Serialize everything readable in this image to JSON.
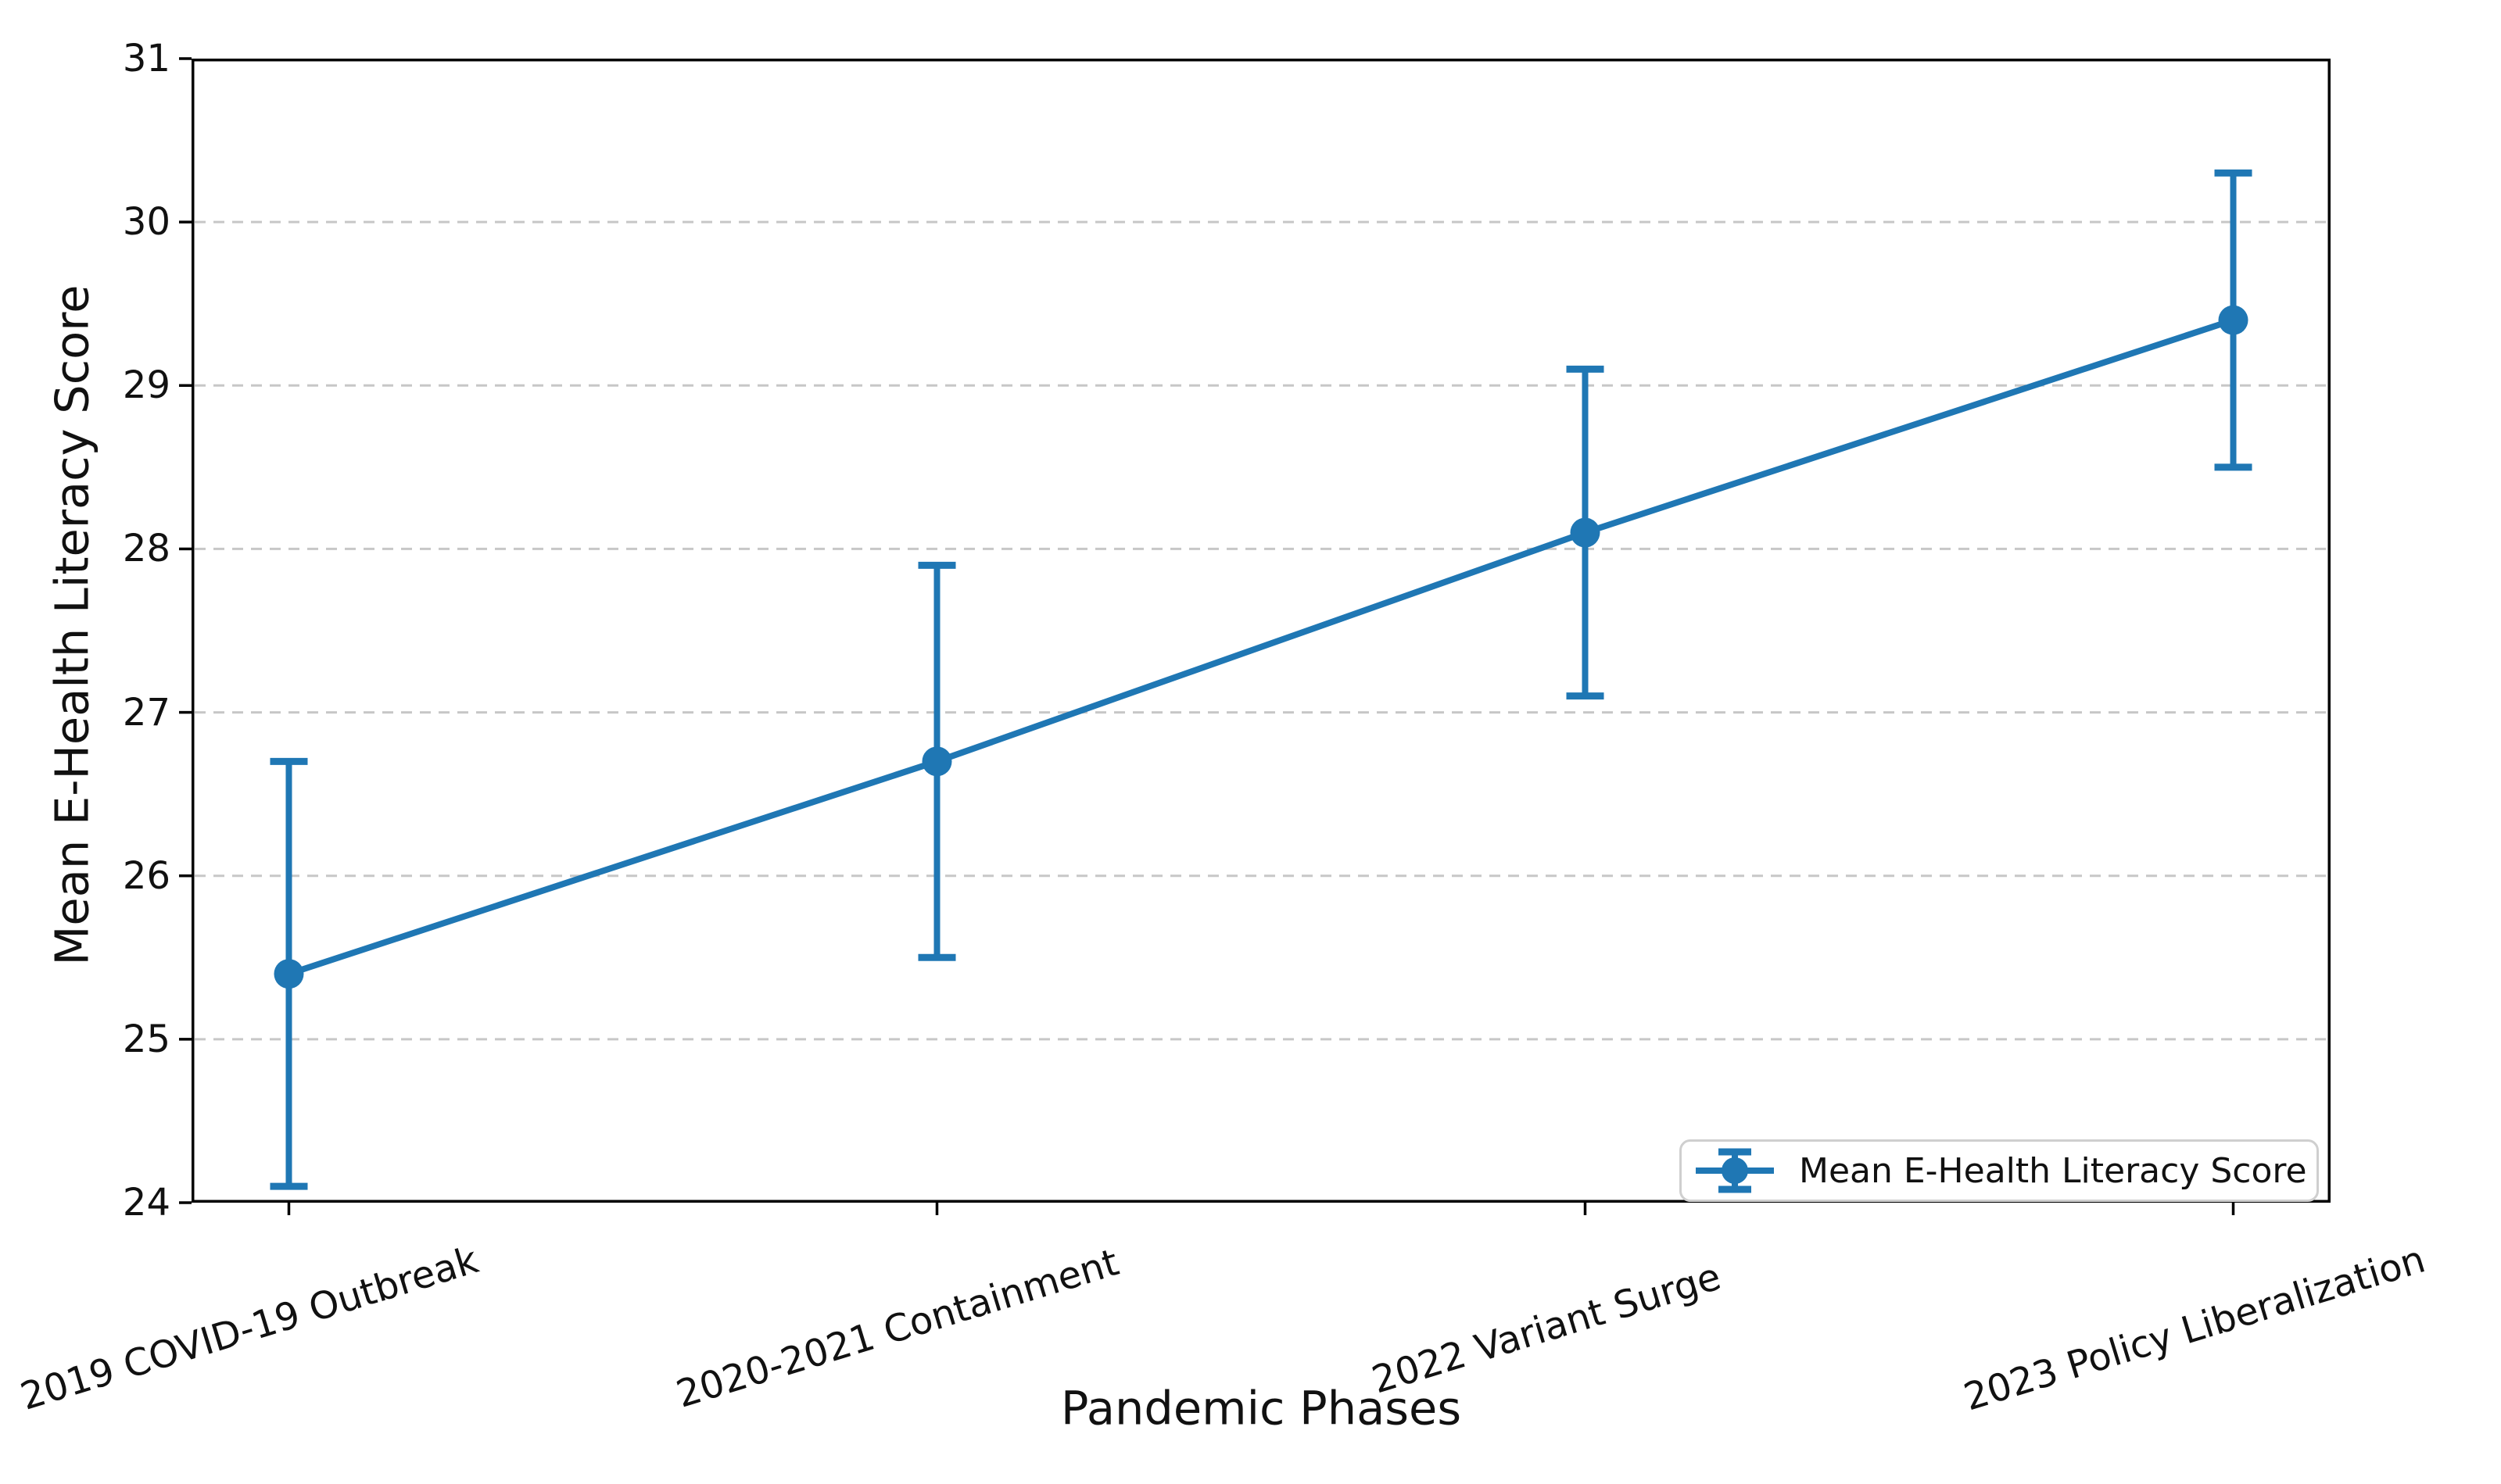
{
  "figure": {
    "background": "#ffffff"
  },
  "chart_data": {
    "type": "line",
    "title": "",
    "xlabel": "Pandemic Phases",
    "ylabel": "Mean E-Health Literacy Score",
    "categories": [
      "2019 COVID-19 Outbreak",
      "2020-2021 Containment",
      "2022 Variant Surge",
      "2023 Policy Liberalization"
    ],
    "series": [
      {
        "name": "Mean E-Health Literacy Score",
        "values": [
          25.4,
          26.7,
          28.1,
          29.4
        ],
        "errors": [
          1.3,
          1.2,
          1.0,
          0.9
        ],
        "marker": "circle"
      }
    ],
    "ylim": [
      24,
      31
    ],
    "yticks": [
      24,
      25,
      26,
      27,
      28,
      29,
      30,
      31
    ],
    "grid": {
      "axis": "y",
      "style": "dashed",
      "color": "#c7c7c7"
    },
    "legend": {
      "position": "lower right",
      "label": "Mean E-Health Literacy Score"
    },
    "colors": {
      "series": "#1f77b4",
      "spine": "#000000",
      "tick": "#000000",
      "text": "#111111"
    }
  }
}
